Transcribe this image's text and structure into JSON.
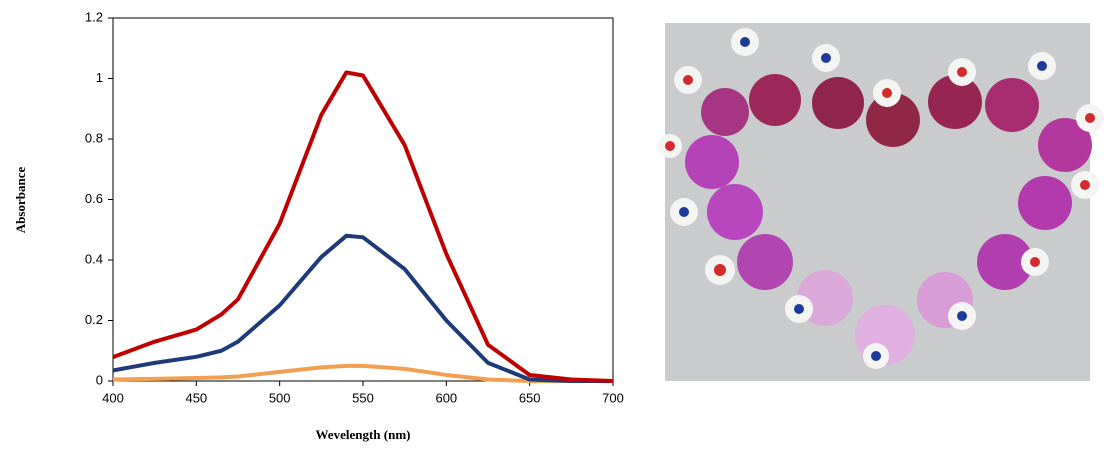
{
  "chart_data": {
    "type": "line",
    "x_label": "Wevelength (nm)",
    "y_label": "Absorbance",
    "x": [
      400,
      425,
      450,
      465,
      475,
      500,
      525,
      540,
      550,
      575,
      600,
      625,
      650,
      675,
      700
    ],
    "series": [
      {
        "color": "#c00000",
        "values": [
          0.079,
          0.13,
          0.17,
          0.22,
          0.27,
          0.52,
          0.88,
          1.02,
          1.01,
          0.78,
          0.42,
          0.12,
          0.02,
          0.005,
          0
        ]
      },
      {
        "color": "#1f3a7a",
        "values": [
          0.035,
          0.06,
          0.08,
          0.1,
          0.13,
          0.25,
          0.41,
          0.48,
          0.475,
          0.37,
          0.2,
          0.06,
          0.005,
          0,
          0
        ]
      },
      {
        "color": "#f0a050",
        "values": [
          0.005,
          0.007,
          0.01,
          0.012,
          0.015,
          0.03,
          0.045,
          0.05,
          0.05,
          0.04,
          0.02,
          0.005,
          0,
          0,
          0
        ]
      }
    ],
    "xlim": [
      400,
      700
    ],
    "xticks": [
      400,
      450,
      500,
      550,
      600,
      650,
      700
    ],
    "ylim": [
      0,
      1.2
    ],
    "yticks": [
      0,
      0.2,
      0.4,
      0.6,
      0.8,
      1,
      1.2
    ],
    "grid": false
  }
}
